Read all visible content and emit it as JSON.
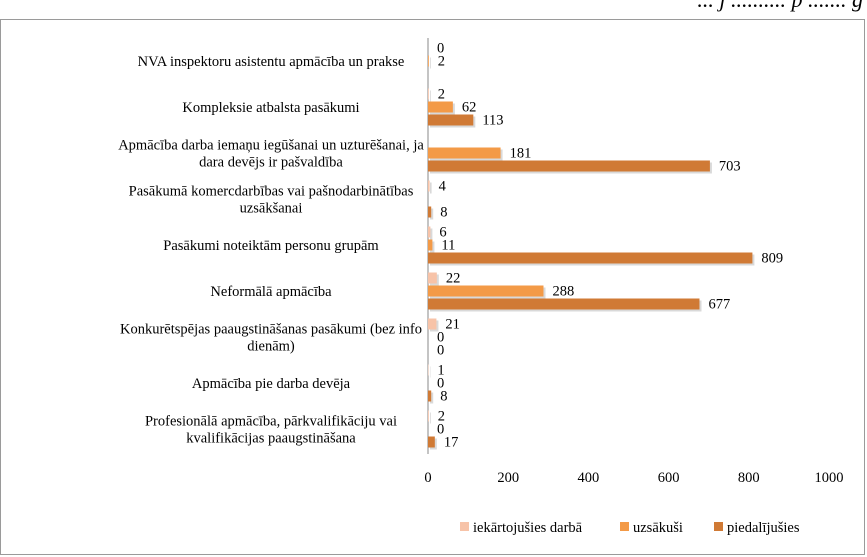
{
  "header_fragment": "... j .......... p ....... g",
  "chart_data": {
    "type": "bar",
    "orientation": "horizontal",
    "categories": [
      [
        "NVA inspektoru asistentu apmācība un prakse"
      ],
      [
        "Kompleksie atbalsta pasākumi"
      ],
      [
        "Apmācība darba iemaņu iegūšanai un uzturēšanai, ja",
        "dara devējs ir pašvaldība"
      ],
      [
        "Pasākumā komercdarbības vai pašnodarbinātības",
        "uzsākšanai"
      ],
      [
        "Pasākumi noteiktām personu grupām"
      ],
      [
        "Neformālā apmācība"
      ],
      [
        "Konkurētspējas paaugstināšanas pasākumi (bez info",
        "dienām)"
      ],
      [
        "Apmācība pie darba devēja"
      ],
      [
        "Profesionālā apmācība, pārkvalifikāciju vai",
        "kvalifikācijas paaugstināšana"
      ]
    ],
    "series": [
      {
        "name": "iekārtojušies darbā",
        "color": "#f7c3a8",
        "values": [
          0,
          2,
          0,
          4,
          6,
          22,
          21,
          1,
          2
        ],
        "labels": [
          "0",
          "2",
          "",
          "4",
          "6",
          "22",
          "21",
          "1",
          "2"
        ]
      },
      {
        "name": "uzsākuši",
        "color": "#f39a47",
        "values": [
          2,
          62,
          181,
          0,
          11,
          288,
          0,
          0,
          0
        ],
        "labels": [
          "2",
          "62",
          "181",
          "",
          "11",
          "288",
          "0",
          "0",
          "0"
        ]
      },
      {
        "name": "piedalījušies",
        "color": "#d07a35",
        "values": [
          0,
          113,
          703,
          8,
          809,
          677,
          0,
          8,
          17
        ],
        "labels": [
          "",
          "113",
          "703",
          "8",
          "809",
          "677",
          "0",
          "8",
          "17"
        ]
      }
    ],
    "xlim": [
      0,
      1000
    ],
    "xticks": [
      "0",
      "200",
      "400",
      "600",
      "800",
      "1000"
    ],
    "legend_position": "bottom",
    "grid": false
  }
}
